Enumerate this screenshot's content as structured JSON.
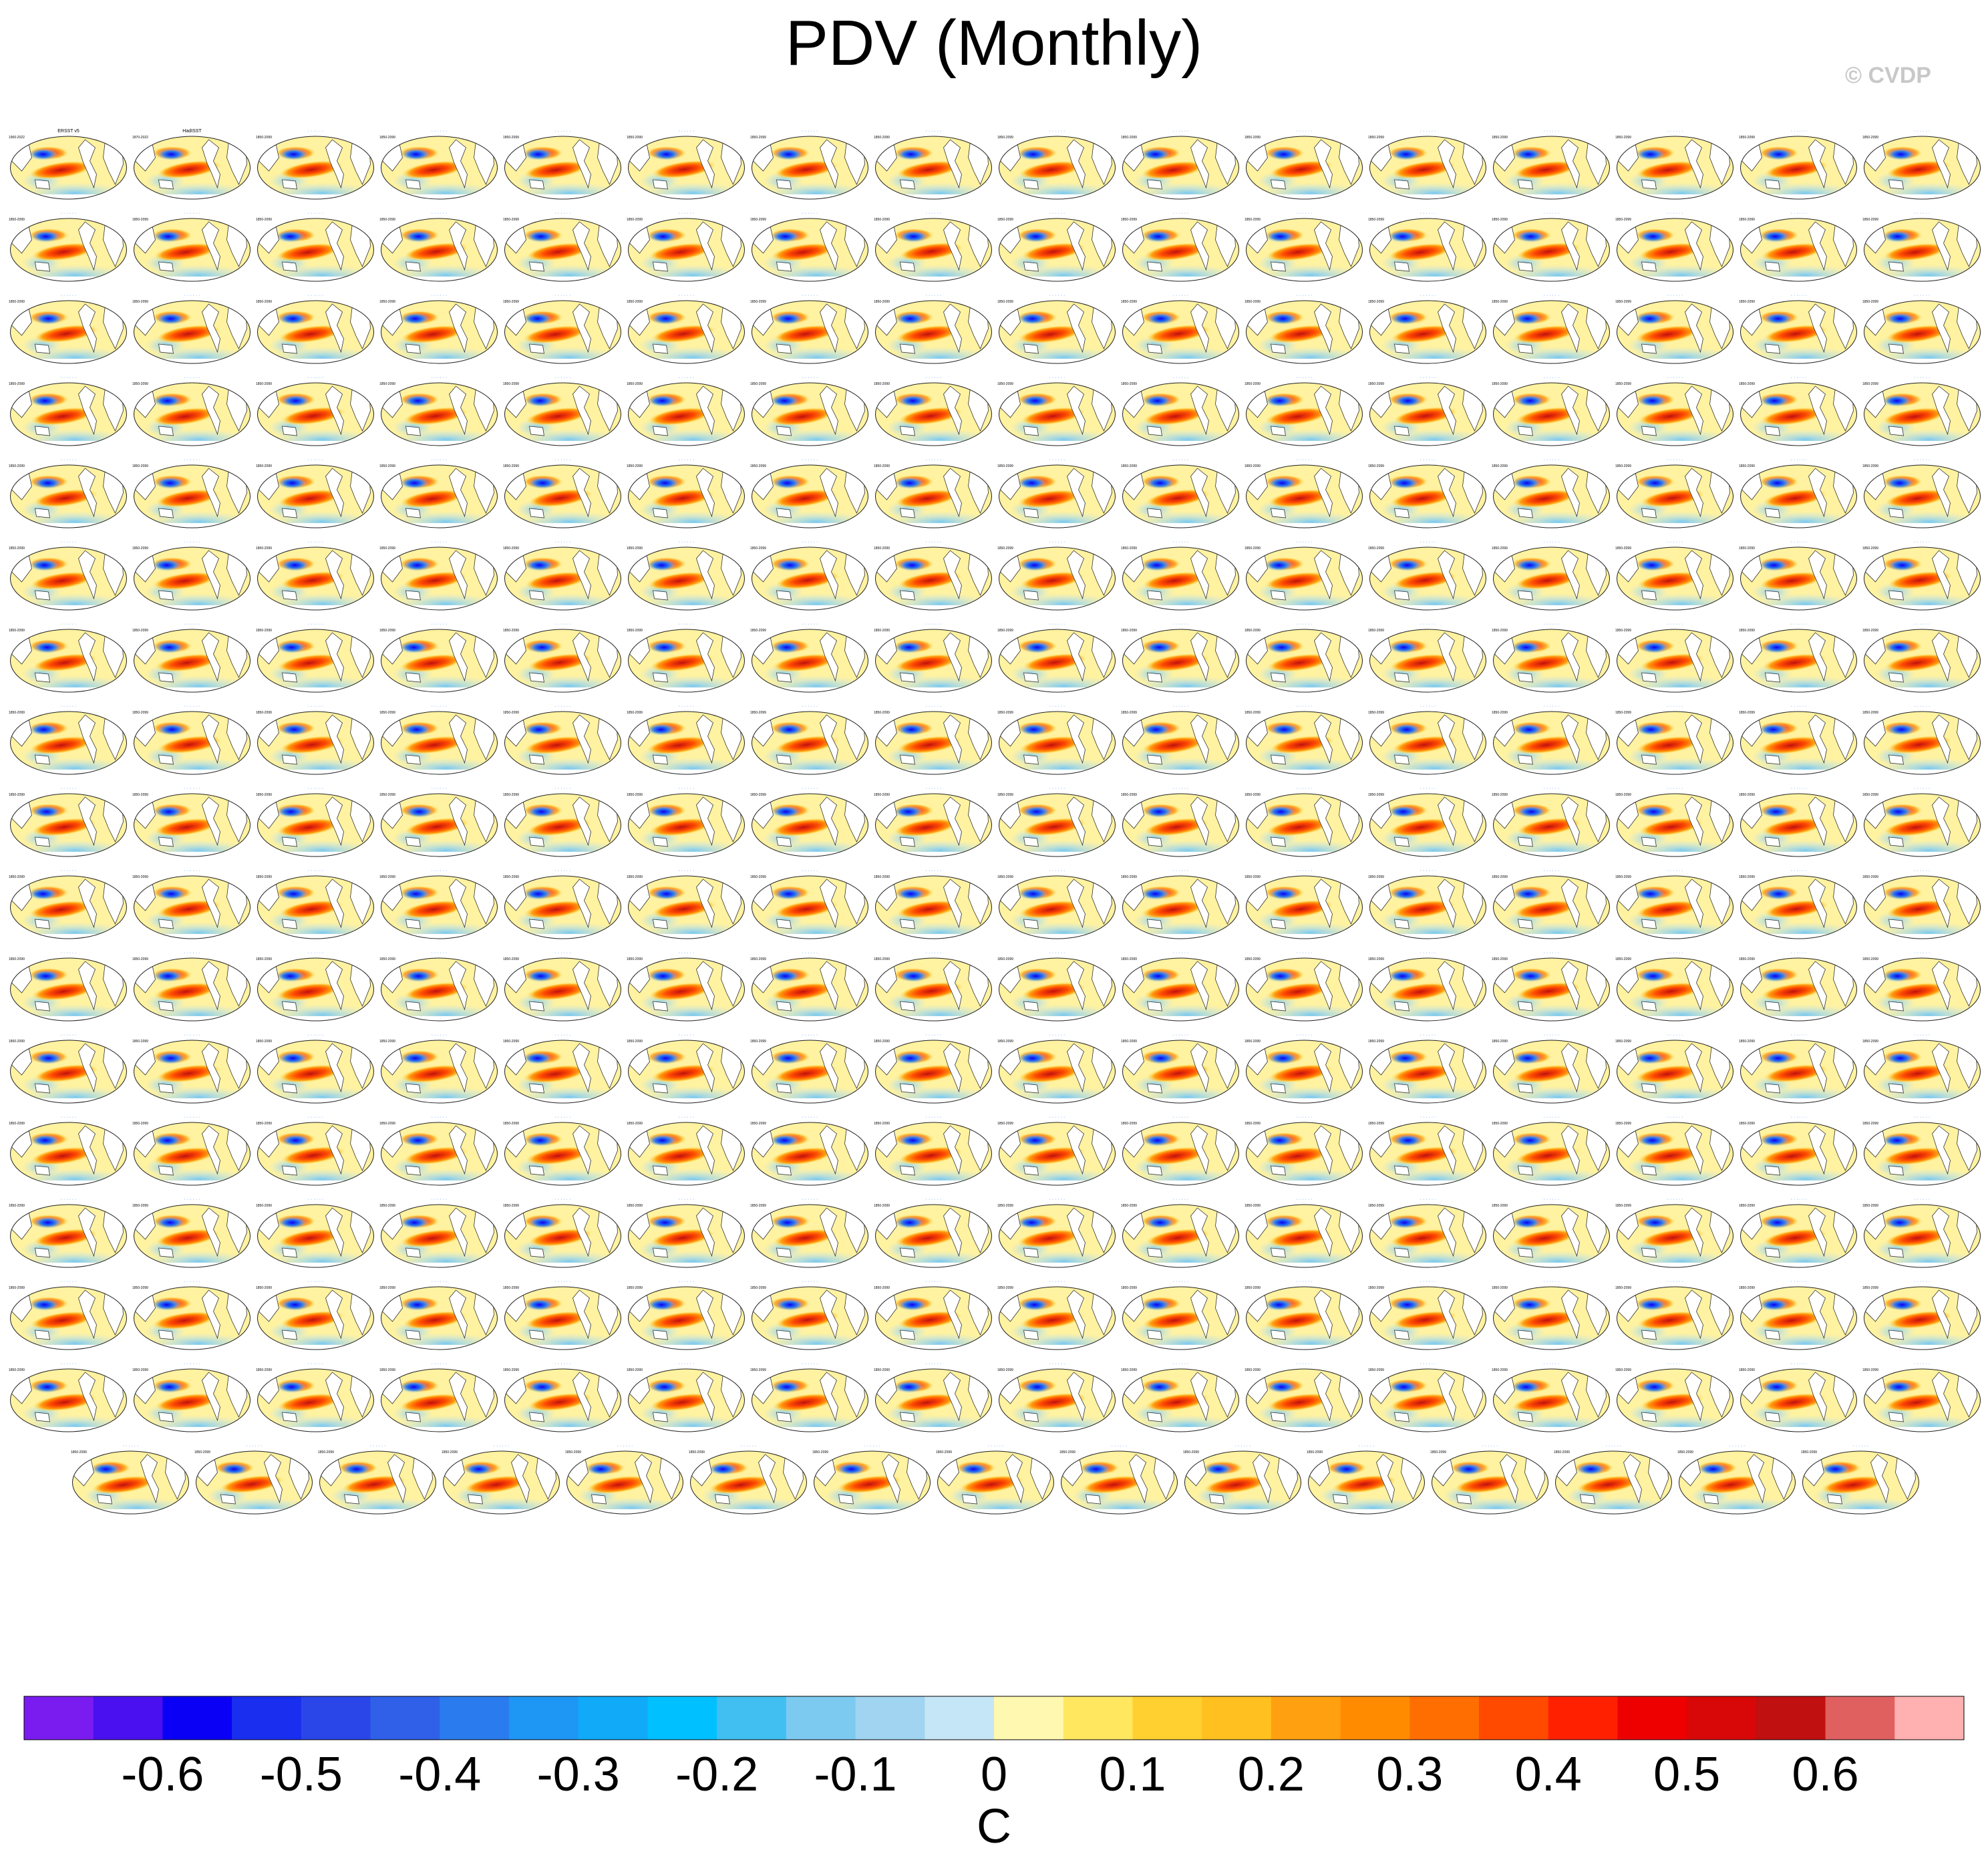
{
  "title": "PDV (Monthly)",
  "credit": "© CVDP",
  "chart_data": {
    "type": "heatmap",
    "description_units": "SST regression pattern panels",
    "rows": 17,
    "panels_per_full_row": 16,
    "panels_last_row": 15,
    "panel_headers_first_row": [
      "ERSST v5",
      "HadISST"
    ],
    "period_labels": [
      "1900-2022",
      "1870-2022",
      "1850-2099"
    ],
    "colorbar": {
      "unit": "C",
      "tick_labels": [
        "-0.6",
        "-0.5",
        "-0.4",
        "-0.3",
        "-0.2",
        "-0.1",
        "0",
        "0.1",
        "0.2",
        "0.3",
        "0.4",
        "0.5",
        "0.6"
      ],
      "min": -0.7,
      "max": 0.7,
      "step": 0.05,
      "colors": [
        "#7a1cf0",
        "#4a10f0",
        "#0a00f5",
        "#1a2ef0",
        "#2a46e8",
        "#3060e8",
        "#2a7cee",
        "#1e96f4",
        "#10aaf8",
        "#00c0ff",
        "#40bff0",
        "#7dcaf0",
        "#a0d4f0",
        "#c4e6f6",
        "#fff8b0",
        "#ffe860",
        "#ffd030",
        "#ffc020",
        "#ffa010",
        "#ff8c00",
        "#ff6e00",
        "#ff4a00",
        "#ff2000",
        "#ee0000",
        "#d80808",
        "#c01010",
        "#e06060",
        "#ffb0b0"
      ]
    }
  }
}
